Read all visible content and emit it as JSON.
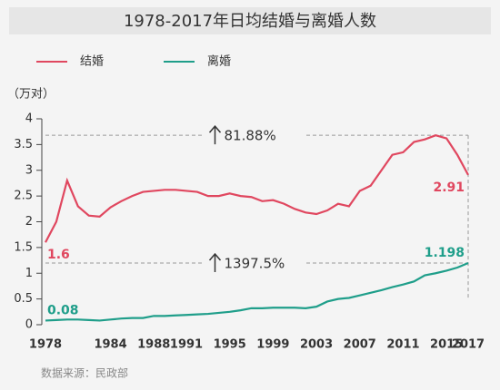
{
  "chart_data": {
    "type": "line",
    "title": "1978-2017年日均结婚与离婚人数",
    "y_label": "（万对）",
    "source": "数据来源：民政部",
    "x": [
      1978,
      1979,
      1980,
      1981,
      1982,
      1983,
      1984,
      1985,
      1986,
      1987,
      1988,
      1989,
      1990,
      1991,
      1992,
      1993,
      1994,
      1995,
      1996,
      1997,
      1998,
      1999,
      2000,
      2001,
      2002,
      2003,
      2004,
      2005,
      2006,
      2007,
      2008,
      2009,
      2010,
      2011,
      2012,
      2013,
      2014,
      2015,
      2016,
      2017
    ],
    "series": [
      {
        "name": "结婚",
        "color": "#e0475f",
        "values": [
          1.6,
          2.0,
          2.8,
          2.3,
          2.12,
          2.1,
          2.28,
          2.4,
          2.5,
          2.58,
          2.6,
          2.62,
          2.62,
          2.6,
          2.58,
          2.5,
          2.5,
          2.55,
          2.5,
          2.48,
          2.4,
          2.42,
          2.35,
          2.25,
          2.18,
          2.15,
          2.22,
          2.35,
          2.3,
          2.6,
          2.7,
          3.0,
          3.3,
          3.35,
          3.55,
          3.6,
          3.68,
          3.62,
          3.3,
          2.91
        ],
        "value_labels": [
          "1.6",
          null,
          null,
          null,
          null,
          null,
          null,
          null,
          null,
          null,
          null,
          null,
          null,
          null,
          null,
          null,
          null,
          null,
          null,
          null,
          null,
          null,
          null,
          null,
          null,
          null,
          null,
          null,
          null,
          null,
          null,
          null,
          null,
          null,
          null,
          null,
          null,
          null,
          null,
          "2.91"
        ],
        "annotation": "81.88%"
      },
      {
        "name": "离婚",
        "color": "#1f9e8a",
        "values": [
          0.08,
          0.09,
          0.1,
          0.1,
          0.09,
          0.08,
          0.1,
          0.12,
          0.13,
          0.13,
          0.17,
          0.17,
          0.18,
          0.19,
          0.2,
          0.21,
          0.23,
          0.25,
          0.28,
          0.32,
          0.32,
          0.33,
          0.33,
          0.33,
          0.32,
          0.35,
          0.45,
          0.5,
          0.52,
          0.57,
          0.62,
          0.67,
          0.73,
          0.78,
          0.84,
          0.96,
          1.0,
          1.05,
          1.11,
          1.198
        ],
        "value_labels": [
          "0.08",
          null,
          null,
          null,
          null,
          null,
          null,
          null,
          null,
          null,
          null,
          null,
          null,
          null,
          null,
          null,
          null,
          null,
          null,
          null,
          null,
          null,
          null,
          null,
          null,
          null,
          null,
          null,
          null,
          null,
          null,
          null,
          null,
          null,
          null,
          null,
          null,
          null,
          null,
          "1.198"
        ],
        "annotation": "1397.5%"
      }
    ],
    "xlim": [
      1978,
      2017
    ],
    "xticks": [
      1978,
      1984,
      1988,
      1991,
      1995,
      1999,
      2003,
      2007,
      2011,
      2015,
      2017
    ],
    "ylim": [
      0,
      4
    ],
    "yticks": [
      0,
      0.5,
      1,
      1.5,
      2,
      2.5,
      3,
      3.5,
      4
    ],
    "grid": false
  }
}
